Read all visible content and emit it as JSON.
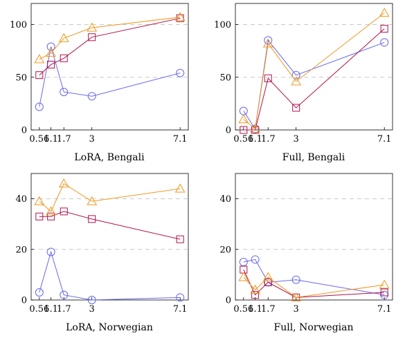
{
  "colors": {
    "blue": "#6666ee",
    "orange": "#f0961e",
    "red": "#b0104a"
  },
  "chart_data": [
    {
      "type": "line",
      "title": "LoRA, Bengali",
      "x": [
        0.56,
        1.1,
        1.7,
        3,
        7.1
      ],
      "xticks": [
        "0.56",
        "1.1",
        "1.7",
        "3",
        "7.1"
      ],
      "ylim": [
        0,
        120
      ],
      "yticks": [
        0,
        50,
        100
      ],
      "grid": "dashed horizontal",
      "series": [
        {
          "marker": "circle",
          "color": "blue",
          "values": [
            22,
            79,
            36,
            32,
            54
          ]
        },
        {
          "marker": "triangle",
          "color": "orange",
          "values": [
            67,
            73,
            87,
            97,
            107
          ]
        },
        {
          "marker": "square",
          "color": "red",
          "values": [
            52,
            62,
            68,
            88,
            106
          ]
        }
      ]
    },
    {
      "type": "line",
      "title": "Full, Bengali",
      "x": [
        0.56,
        1.1,
        1.7,
        3,
        7.1
      ],
      "xticks": [
        "0.56",
        "1.1",
        "1.7",
        "3",
        "7.1"
      ],
      "ylim": [
        0,
        120
      ],
      "yticks": [
        0,
        50,
        100
      ],
      "grid": "dashed horizontal",
      "series": [
        {
          "marker": "circle",
          "color": "blue",
          "values": [
            18,
            1,
            85,
            52,
            83
          ]
        },
        {
          "marker": "triangle",
          "color": "orange",
          "values": [
            10,
            1,
            82,
            46,
            111
          ]
        },
        {
          "marker": "square",
          "color": "red",
          "values": [
            0,
            0,
            49,
            21,
            96
          ]
        }
      ]
    },
    {
      "type": "line",
      "title": "LoRA, Norwegian",
      "x": [
        0.56,
        1.1,
        1.7,
        3,
        7.1
      ],
      "xticks": [
        "0.56",
        "1.1",
        "1.7",
        "3",
        "7.1"
      ],
      "ylim": [
        0,
        50
      ],
      "yticks": [
        0,
        20,
        40
      ],
      "grid": "dashed horizontal",
      "series": [
        {
          "marker": "circle",
          "color": "blue",
          "values": [
            3,
            19,
            2,
            0,
            1
          ]
        },
        {
          "marker": "triangle",
          "color": "orange",
          "values": [
            39,
            35,
            46,
            39,
            44
          ]
        },
        {
          "marker": "square",
          "color": "red",
          "values": [
            33,
            33,
            35,
            32,
            24
          ]
        }
      ]
    },
    {
      "type": "line",
      "title": "Full, Norwegian",
      "x": [
        0.56,
        1.1,
        1.7,
        3,
        7.1
      ],
      "xticks": [
        "0.56",
        "1.1",
        "1.7",
        "3",
        "7.1"
      ],
      "ylim": [
        0,
        50
      ],
      "yticks": [
        0,
        20,
        40
      ],
      "grid": "dashed horizontal",
      "series": [
        {
          "marker": "circle",
          "color": "blue",
          "values": [
            15,
            16,
            7,
            8,
            2
          ]
        },
        {
          "marker": "triangle",
          "color": "orange",
          "values": [
            9,
            4,
            9,
            1,
            6
          ]
        },
        {
          "marker": "square",
          "color": "red",
          "values": [
            12,
            2,
            7,
            1,
            3
          ]
        }
      ]
    }
  ]
}
